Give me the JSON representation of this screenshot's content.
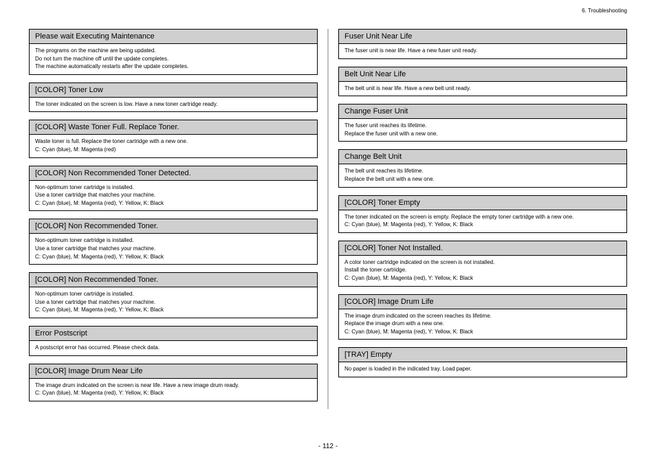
{
  "breadcrumb": "6. Troubleshooting",
  "page_number": "- 112 -",
  "left_blocks": [
    {
      "title": "Please wait Executing Maintenance",
      "lines": [
        "The programs on the machine are being updated.",
        "Do not turn the machine off until the update completes.",
        "The machine automatically restarts after the update completes."
      ]
    },
    {
      "title": "[COLOR] Toner Low",
      "lines": [
        "The toner indicated on the screen is low. Have a new toner cartridge ready."
      ]
    },
    {
      "title": "[COLOR] Waste Toner Full. Replace Toner.",
      "lines": [
        "Waste toner is full. Replace the toner cartridge with a new one.",
        "C: Cyan (blue), M: Magenta (red)"
      ]
    },
    {
      "title": "[COLOR] Non Recommended Toner Detected.",
      "lines": [
        "Non-optimum toner cartridge is installed.",
        "Use a toner cartridge that matches your machine.",
        "C: Cyan (blue), M: Magenta (red), Y: Yellow, K: Black"
      ]
    },
    {
      "title": "[COLOR] Non Recommended Toner.",
      "lines": [
        "Non-optimum toner cartridge is installed.",
        "Use a toner cartridge that matches your machine.",
        "C: Cyan (blue), M: Magenta (red), Y: Yellow, K: Black"
      ]
    },
    {
      "title": "[COLOR] Non Recommended Toner.",
      "lines": [
        "Non-optimum toner cartridge is installed.",
        "Use a toner cartridge that matches your machine.",
        "C: Cyan (blue), M: Magenta (red), Y: Yellow, K: Black"
      ]
    },
    {
      "title": "Error Postscript",
      "lines": [
        "A postscript error has occurred. Please check data."
      ]
    },
    {
      "title": "[COLOR] Image Drum Near Life",
      "lines": [
        "The image drum indicated on the screen is near life. Have a new image drum ready.",
        "C: Cyan (blue), M: Magenta (red), Y: Yellow, K: Black"
      ]
    }
  ],
  "right_blocks": [
    {
      "title": "Fuser Unit Near Life",
      "lines": [
        "The fuser unit is near life. Have a new fuser unit ready."
      ]
    },
    {
      "title": "Belt Unit Near Life",
      "lines": [
        "The belt unit is near life. Have a new belt unit ready."
      ]
    },
    {
      "title": "Change Fuser Unit",
      "lines": [
        "The fuser unit reaches its lifetime.",
        "Replace the fuser unit with a new one."
      ]
    },
    {
      "title": "Change Belt Unit",
      "lines": [
        "The belt unit reaches its lifetime.",
        "Replace the belt unit with a new one."
      ]
    },
    {
      "title": "[COLOR] Toner Empty",
      "lines": [
        "The toner indicated on the screen is empty. Replace the empty toner cartridge with a new one.",
        "C: Cyan (blue), M: Magenta (red), Y: Yellow, K: Black"
      ]
    },
    {
      "title": "[COLOR] Toner Not Installed.",
      "lines": [
        "A color toner cartridge indicated on the screen is not installed.",
        "Install the toner cartridge.",
        "C: Cyan (blue), M: Magenta (red), Y: Yellow, K: Black"
      ]
    },
    {
      "title": "[COLOR] Image Drum Life",
      "lines": [
        "The image drum indicated on the screen reaches its lifetime.",
        "Replace the image drum with a new one.",
        "C: Cyan (blue), M: Magenta (red), Y: Yellow, K: Black"
      ]
    },
    {
      "title": "[TRAY] Empty",
      "lines": [
        "No paper is loaded in the indicated tray. Load paper."
      ]
    }
  ]
}
